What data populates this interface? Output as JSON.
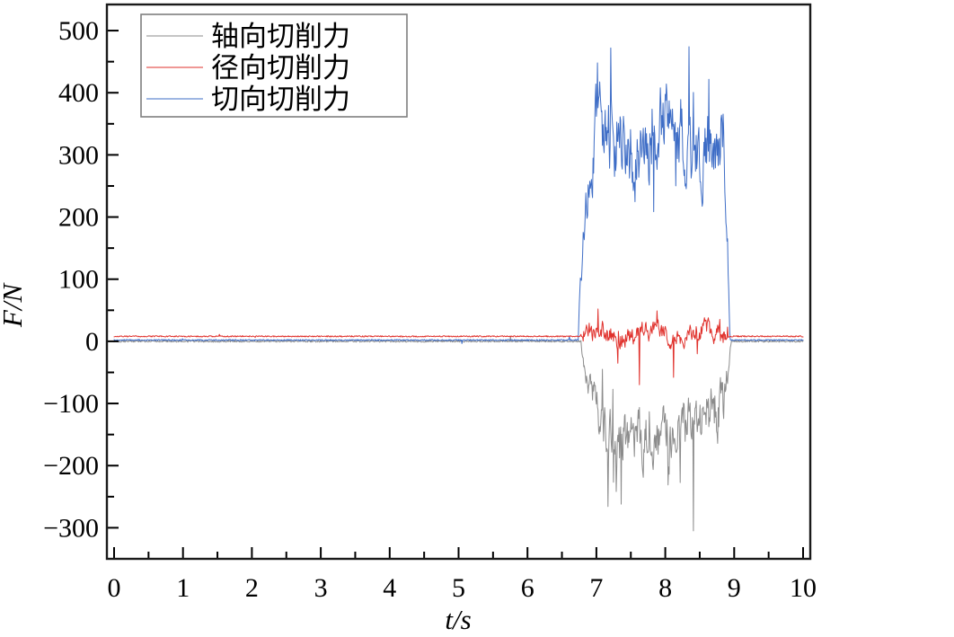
{
  "chart_data": {
    "type": "line",
    "title": "",
    "xlabel": "t/s",
    "ylabel": "F/N",
    "xlim": [
      0,
      10
    ],
    "ylim": [
      -350,
      542
    ],
    "x_ticks": [
      0,
      1,
      2,
      3,
      4,
      5,
      6,
      7,
      8,
      9,
      10
    ],
    "x_minor_step": 0.5,
    "y_ticks": [
      -300,
      -200,
      -100,
      0,
      100,
      200,
      300,
      400,
      500
    ],
    "y_minor_step": 50,
    "grid": false,
    "legend_position": "top-left",
    "description": "Three cutting-force signals flat near 0 N from t=0 s, bursting into noisy oscillation during cutting engagement from about t=6.8 s to t=8.9 s, then returning to baseline until t=10 s.",
    "series": [
      {
        "name": "轴向切削力",
        "color": "#8c8c8c",
        "baseline_n": 0,
        "burst": {
          "t_start": 6.78,
          "t_end": 8.96,
          "rise_s": 0.3,
          "fall_s": 0.12,
          "mean_n": -135,
          "noise_n": 36,
          "min_n": -270,
          "max_n": -45,
          "notable_points": [
            {
              "t": 7.36,
              "F": -262
            },
            {
              "t": 8.41,
              "F": -305
            }
          ]
        }
      },
      {
        "name": "径向切削力",
        "color": "#e0312c",
        "baseline_n": 8,
        "burst": {
          "t_start": 6.76,
          "t_end": 8.94,
          "rise_s": 0.15,
          "fall_s": 0.1,
          "mean_n": 13,
          "noise_n": 13,
          "min_n": -55,
          "max_n": 52,
          "notable_points": [
            {
              "t": 7.62,
              "F": -70
            },
            {
              "t": 8.12,
              "F": -58
            }
          ]
        }
      },
      {
        "name": "切向切削力",
        "color": "#3e6dc6",
        "baseline_n": 2,
        "burst": {
          "t_start": 6.74,
          "t_end": 8.94,
          "rise_s": 0.25,
          "fall_s": 0.1,
          "mean_n": 328,
          "noise_n": 52,
          "min_n": 170,
          "max_n": 455,
          "notable_points": [
            {
              "t": 7.02,
              "F": 448
            },
            {
              "t": 7.21,
              "F": 472
            },
            {
              "t": 8.34,
              "F": 474
            }
          ]
        }
      }
    ]
  }
}
